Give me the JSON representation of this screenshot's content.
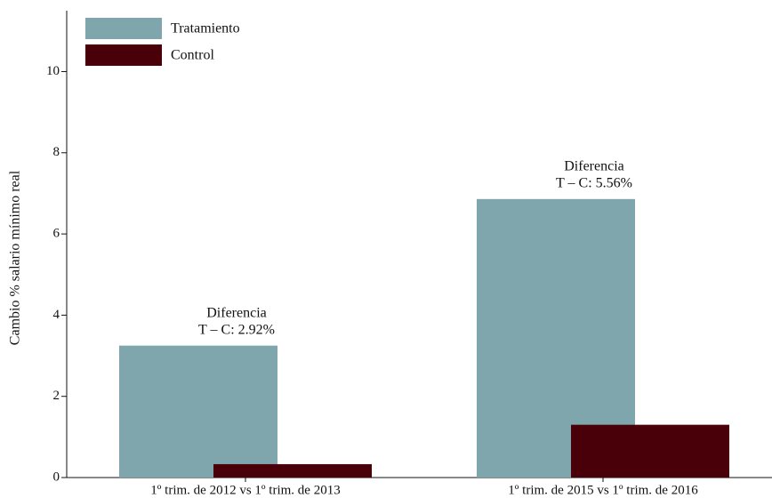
{
  "chart_data": {
    "type": "bar",
    "y_label": "Cambio % salario mínimo real",
    "categories": [
      "1º trim. de 2012 vs 1º trim. de 2013",
      "1º trim. de 2015 vs 1º trim. de 2016"
    ],
    "series": [
      {
        "name": "Tratamiento",
        "color": "#7fa5ad",
        "values": [
          3.25,
          6.86
        ]
      },
      {
        "name": "Control",
        "color": "#4a0008",
        "values": [
          0.33,
          1.3
        ]
      }
    ],
    "annotations": [
      {
        "lines": [
          "Diferencia",
          "T – C: 2.92%"
        ]
      },
      {
        "lines": [
          "Diferencia",
          "T – C: 5.56%"
        ]
      }
    ],
    "ylim": [
      0,
      11.5
    ],
    "yticks": [
      0,
      2,
      4,
      6,
      8,
      10
    ],
    "grid": false,
    "legend": "top-left"
  }
}
